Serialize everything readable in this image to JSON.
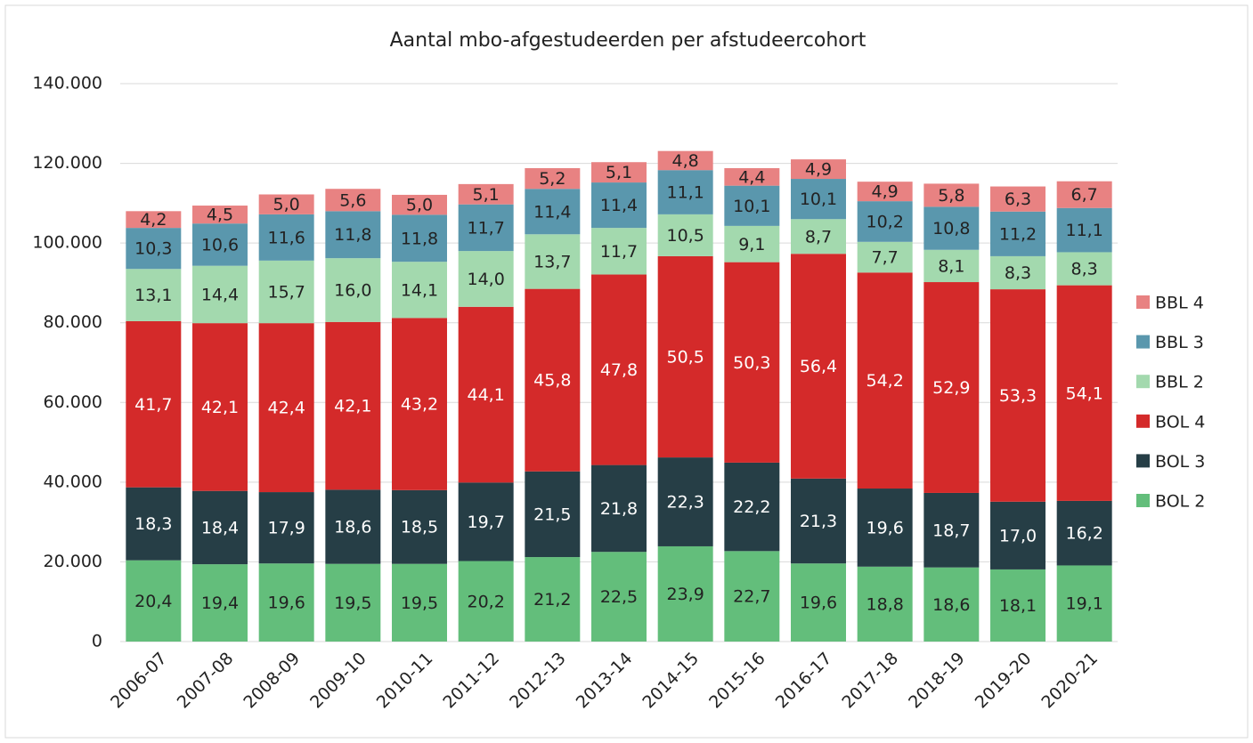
{
  "chart_data": {
    "type": "bar",
    "stacked": true,
    "title": "Aantal mbo-afgestudeerden per afstudeercohort",
    "categories": [
      "2006-07",
      "2007-08",
      "2008-09",
      "2009-10",
      "2010-11",
      "2011-12",
      "2012-13",
      "2013-14",
      "2014-15",
      "2015-16",
      "2016-17",
      "2017-18",
      "2018-19",
      "2019-20",
      "2020-21"
    ],
    "series": [
      {
        "name": "BOL 2",
        "color": "#63be7b",
        "values": [
          20400,
          19400,
          19600,
          19500,
          19500,
          20200,
          21200,
          22500,
          23900,
          22700,
          19600,
          18800,
          18600,
          18100,
          19100
        ],
        "value_labels": [
          "20,4",
          "19,4",
          "19,6",
          "19,5",
          "19,5",
          "20,2",
          "21,2",
          "22,5",
          "23,9",
          "22,7",
          "19,6",
          "18,8",
          "18,6",
          "18,1",
          "19,1"
        ]
      },
      {
        "name": "BOL 3",
        "color": "#263e46",
        "values": [
          18300,
          18400,
          17900,
          18600,
          18500,
          19700,
          21500,
          21800,
          22300,
          22200,
          21300,
          19600,
          18700,
          17000,
          16200
        ],
        "value_labels": [
          "18,3",
          "18,4",
          "17,9",
          "18,6",
          "18,5",
          "19,7",
          "21,5",
          "21,8",
          "22,3",
          "22,2",
          "21,3",
          "19,6",
          "18,7",
          "17,0",
          "16,2"
        ]
      },
      {
        "name": "BOL 4",
        "color": "#d42a2a",
        "values": [
          41700,
          42100,
          42400,
          42100,
          43200,
          44100,
          45800,
          47800,
          50500,
          50300,
          56400,
          54200,
          52900,
          53300,
          54100
        ],
        "value_labels": [
          "41,7",
          "42,1",
          "42,4",
          "42,1",
          "43,2",
          "44,1",
          "45,8",
          "47,8",
          "50,5",
          "50,3",
          "56,4",
          "54,2",
          "52,9",
          "53,3",
          "54,1"
        ]
      },
      {
        "name": "BBL 2",
        "color": "#a3d9ae",
        "values": [
          13100,
          14400,
          15700,
          16000,
          14100,
          14000,
          13700,
          11700,
          10500,
          9100,
          8700,
          7700,
          8100,
          8300,
          8300
        ],
        "value_labels": [
          "13,1",
          "14,4",
          "15,7",
          "16,0",
          "14,1",
          "14,0",
          "13,7",
          "11,7",
          "10,5",
          "9,1",
          "8,7",
          "7,7",
          "8,1",
          "8,3",
          "8,3"
        ]
      },
      {
        "name": "BBL 3",
        "color": "#5a97ad",
        "values": [
          10300,
          10600,
          11600,
          11800,
          11800,
          11700,
          11400,
          11400,
          11100,
          10100,
          10100,
          10200,
          10800,
          11200,
          11100
        ],
        "value_labels": [
          "10,3",
          "10,6",
          "11,6",
          "11,8",
          "11,8",
          "11,7",
          "11,4",
          "11,4",
          "11,1",
          "10,1",
          "10,1",
          "10,2",
          "10,8",
          "11,2",
          "11,1"
        ]
      },
      {
        "name": "BBL 4",
        "color": "#e88282",
        "values": [
          4200,
          4500,
          5000,
          5600,
          5000,
          5100,
          5200,
          5100,
          4800,
          4400,
          4900,
          4900,
          5800,
          6300,
          6700
        ],
        "value_labels": [
          "4,2",
          "4,5",
          "5,0",
          "5,6",
          "5,0",
          "5,1",
          "5,2",
          "5,1",
          "4,8",
          "4,4",
          "4,9",
          "4,9",
          "5,8",
          "6,3",
          "6,7"
        ]
      }
    ],
    "ylim": [
      0,
      140000
    ],
    "yticks": [
      0,
      {
        "value": 20000,
        "label": "20.000"
      },
      {
        "value": 40000,
        "label": "40.000"
      },
      {
        "value": 60000,
        "label": "60.000"
      },
      {
        "value": 80000,
        "label": "80.000"
      },
      {
        "value": 100000,
        "label": "100.000"
      },
      {
        "value": 120000,
        "label": "120.000"
      },
      {
        "value": 140000,
        "label": "140.000"
      }
    ],
    "grid": true,
    "legend": "right"
  }
}
